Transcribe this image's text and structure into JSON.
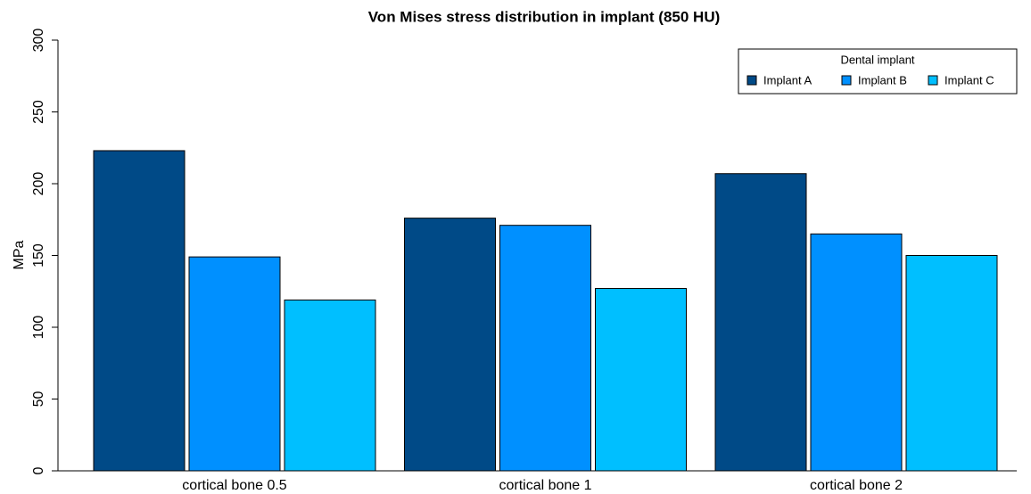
{
  "chart_data": {
    "type": "bar",
    "title": "Von Mises stress distribution in implant (850 HU)",
    "y_label": "MPa",
    "categories": [
      "cortical bone 0.5",
      "cortical bone 1",
      "cortical bone 2"
    ],
    "series": [
      {
        "name": "Implant A",
        "color": "#004a87",
        "values": [
          223,
          176,
          207
        ]
      },
      {
        "name": "Implant B",
        "color": "#0090ff",
        "values": [
          149,
          171,
          165
        ]
      },
      {
        "name": "Implant C",
        "color": "#00bfff",
        "values": [
          119,
          127,
          150
        ]
      }
    ],
    "legend_title": "Dental implant",
    "legend_position": "top-right",
    "ylim": [
      0,
      300
    ],
    "yticks": [
      0,
      50,
      100,
      150,
      200,
      250,
      300
    ]
  }
}
